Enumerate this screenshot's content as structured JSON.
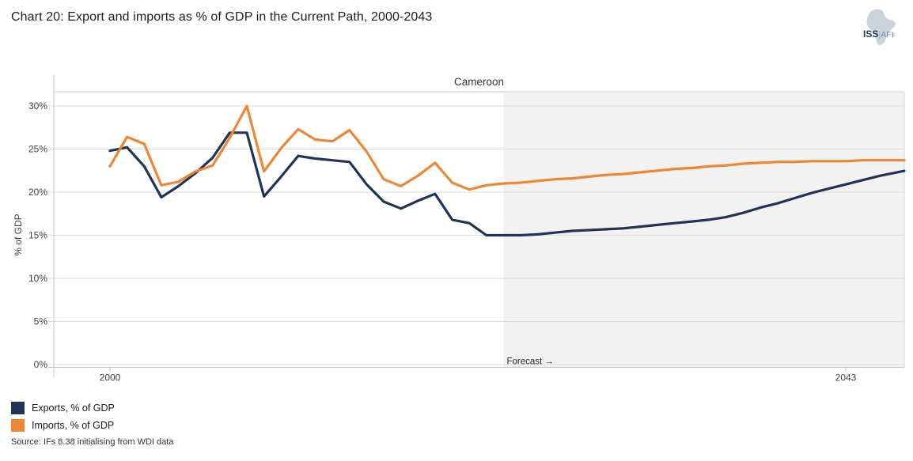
{
  "page": {
    "title": "Chart 20: Export and imports as % of GDP in the Current Path, 2000-2043"
  },
  "logo": {
    "primary": "ISS",
    "separator": "|",
    "secondary": "AFI"
  },
  "chart_data": {
    "type": "line",
    "title": "Cameroon",
    "ylabel": "% of GDP",
    "ylim": [
      0,
      31.7
    ],
    "grid": "horizontal",
    "legend_position": "bottom-left",
    "y_ticks": [
      {
        "value": 0,
        "label": "0%"
      },
      {
        "value": 5,
        "label": "5%"
      },
      {
        "value": 10,
        "label": "10%"
      },
      {
        "value": 15,
        "label": "15%"
      },
      {
        "value": 20,
        "label": "20%"
      },
      {
        "value": 25,
        "label": "25%"
      },
      {
        "value": 30,
        "label": "30%"
      }
    ],
    "x_ticks": [
      {
        "value": 2000,
        "label": "2000"
      },
      {
        "value": 2043,
        "label": "2043"
      }
    ],
    "forecast": {
      "start_year": 2023,
      "label": "Forecast →",
      "fill": "#F2F2F2"
    },
    "x": [
      2000,
      2001,
      2002,
      2003,
      2004,
      2005,
      2006,
      2007,
      2008,
      2009,
      2010,
      2011,
      2012,
      2013,
      2014,
      2015,
      2016,
      2017,
      2018,
      2019,
      2020,
      2021,
      2022,
      2023,
      2024,
      2025,
      2026,
      2027,
      2028,
      2029,
      2030,
      2031,
      2032,
      2033,
      2034,
      2035,
      2036,
      2037,
      2038,
      2039,
      2040,
      2041,
      2042,
      2043,
      2044,
      2045,
      2046
    ],
    "series": [
      {
        "name": "Exports, % of GDP",
        "color": "#1F3458",
        "values": [
          24.8,
          25.2,
          23.0,
          19.4,
          20.7,
          22.2,
          24.0,
          26.9,
          26.9,
          19.5,
          21.8,
          24.2,
          23.9,
          23.7,
          23.5,
          20.9,
          18.9,
          18.1,
          19.0,
          19.8,
          16.8,
          16.4,
          15.0,
          15.0,
          15.0,
          15.1,
          15.3,
          15.5,
          15.6,
          15.7,
          15.8,
          16.0,
          16.2,
          16.4,
          16.6,
          16.8,
          17.1,
          17.6,
          18.2,
          18.7,
          19.3,
          19.9,
          20.4,
          20.9,
          21.4,
          21.9,
          22.3
        ]
      },
      {
        "name": "Imports, % of GDP",
        "color": "#EF8633",
        "values": [
          23.0,
          26.4,
          25.6,
          20.8,
          21.2,
          22.4,
          23.1,
          26.3,
          30.0,
          22.4,
          25.1,
          27.3,
          26.1,
          25.9,
          27.2,
          24.7,
          21.5,
          20.7,
          21.9,
          23.4,
          21.1,
          20.3,
          20.8,
          21.0,
          21.1,
          21.3,
          21.5,
          21.6,
          21.8,
          22.0,
          22.1,
          22.3,
          22.5,
          22.7,
          22.8,
          23.0,
          23.1,
          23.3,
          23.4,
          23.5,
          23.5,
          23.6,
          23.6,
          23.6,
          23.7,
          23.7,
          23.7
        ]
      }
    ]
  },
  "source": "Source: IFs 8.38 initialising from WDI data"
}
